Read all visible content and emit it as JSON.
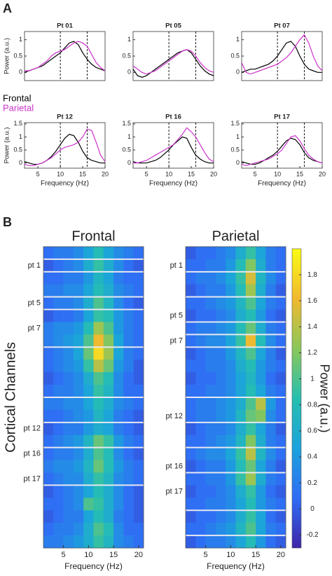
{
  "panel_labels": [
    "A",
    "B"
  ],
  "chart_data": [
    {
      "type": "line",
      "title": "Pt 01",
      "ylabel": "Power (a.u.)",
      "x": [
        2,
        3,
        4,
        5,
        6,
        7,
        8,
        9,
        10,
        11,
        12,
        13,
        14,
        15,
        16,
        17,
        18,
        19,
        20
      ],
      "xlim": [
        2,
        20
      ],
      "ylim": [
        -0.25,
        1.25
      ],
      "yticks": [
        0,
        0.5,
        1
      ],
      "vlines": [
        10,
        16
      ],
      "series": [
        {
          "name": "Frontal",
          "color": "#000000",
          "values": [
            0,
            0.05,
            0.1,
            0.15,
            0.2,
            0.3,
            0.4,
            0.5,
            0.6,
            0.75,
            0.9,
            0.95,
            0.85,
            0.6,
            0.4,
            0.25,
            0.15,
            0.1,
            0.05
          ]
        },
        {
          "name": "Parietal",
          "color": "#cc33cc",
          "values": [
            0.05,
            0.05,
            0.1,
            0.15,
            0.25,
            0.35,
            0.5,
            0.6,
            0.65,
            0.7,
            0.8,
            0.9,
            0.95,
            0.9,
            0.8,
            0.55,
            0.3,
            0.15,
            0.05
          ]
        }
      ]
    },
    {
      "type": "line",
      "title": "Pt 05",
      "x": [
        2,
        3,
        4,
        5,
        6,
        7,
        8,
        9,
        10,
        11,
        12,
        13,
        14,
        15,
        16,
        17,
        18,
        19,
        20
      ],
      "xlim": [
        2,
        20
      ],
      "ylim": [
        -0.25,
        1.25
      ],
      "yticks": [
        0,
        0.5,
        1
      ],
      "vlines": [
        10,
        16
      ],
      "series": [
        {
          "name": "Frontal",
          "color": "#000000",
          "values": [
            0.1,
            -0.1,
            -0.15,
            -0.1,
            0,
            0.1,
            0.2,
            0.3,
            0.4,
            0.5,
            0.6,
            0.65,
            0.7,
            0.6,
            0.4,
            0.2,
            0.05,
            -0.05,
            -0.1
          ]
        },
        {
          "name": "Parietal",
          "color": "#cc33cc",
          "values": [
            0.2,
            0.1,
            0,
            -0.05,
            0,
            0.05,
            0.15,
            0.25,
            0.35,
            0.45,
            0.55,
            0.65,
            0.7,
            0.65,
            0.5,
            0.3,
            0.15,
            0.05,
            0
          ]
        }
      ]
    },
    {
      "type": "line",
      "title": "Pt 07",
      "x": [
        2,
        3,
        4,
        5,
        6,
        7,
        8,
        9,
        10,
        11,
        12,
        13,
        14,
        15,
        16,
        17,
        18,
        19,
        20
      ],
      "xlim": [
        2,
        20
      ],
      "ylim": [
        -0.25,
        1.25
      ],
      "yticks": [
        0,
        0.5,
        1
      ],
      "vlines": [
        10,
        16
      ],
      "series": [
        {
          "name": "Frontal",
          "color": "#000000",
          "values": [
            0,
            0.05,
            0.1,
            0.1,
            0.15,
            0.2,
            0.25,
            0.35,
            0.5,
            0.7,
            0.9,
            0.95,
            0.8,
            0.5,
            0.25,
            0.1,
            0.05,
            0,
            0
          ]
        },
        {
          "name": "Parietal",
          "color": "#cc33cc",
          "values": [
            0.3,
            0,
            -0.05,
            0,
            0.05,
            0.1,
            0.15,
            0.2,
            0.25,
            0.35,
            0.45,
            0.6,
            0.8,
            1.0,
            1.15,
            0.9,
            0.5,
            0.2,
            0.05
          ]
        }
      ]
    },
    {
      "type": "line",
      "title": "Pt 12",
      "ylabel": "Power (a.u.)",
      "xlabel": "Frequency (Hz)",
      "x": [
        2,
        3,
        4,
        5,
        6,
        7,
        8,
        9,
        10,
        11,
        12,
        13,
        14,
        15,
        16,
        17,
        18,
        19,
        20
      ],
      "xlim": [
        2,
        20
      ],
      "ylim": [
        -0.2,
        1.55
      ],
      "yticks": [
        0,
        0.5,
        1,
        1.5
      ],
      "xticks": [
        5,
        10,
        15,
        20
      ],
      "vlines": [
        10,
        16
      ],
      "series": [
        {
          "name": "Frontal",
          "color": "#000000",
          "values": [
            0.05,
            0,
            -0.05,
            -0.05,
            0,
            0.1,
            0.25,
            0.45,
            0.7,
            0.95,
            1.1,
            1.05,
            0.8,
            0.45,
            0.2,
            0.1,
            0.05,
            0,
            0
          ]
        },
        {
          "name": "Parietal",
          "color": "#cc33cc",
          "values": [
            -0.05,
            -0.1,
            -0.1,
            -0.05,
            0,
            0.1,
            0.2,
            0.35,
            0.5,
            0.6,
            0.65,
            0.7,
            0.8,
            1.0,
            1.3,
            1.25,
            0.8,
            0.3,
            0.05
          ]
        }
      ]
    },
    {
      "type": "line",
      "title": "Pt 16",
      "xlabel": "Frequency (Hz)",
      "x": [
        2,
        3,
        4,
        5,
        6,
        7,
        8,
        9,
        10,
        11,
        12,
        13,
        14,
        15,
        16,
        17,
        18,
        19,
        20
      ],
      "xlim": [
        2,
        20
      ],
      "ylim": [
        -0.2,
        1.55
      ],
      "yticks": [
        0,
        0.5,
        1,
        1.5
      ],
      "xticks": [
        5,
        10,
        15,
        20
      ],
      "vlines": [
        10,
        16
      ],
      "series": [
        {
          "name": "Frontal",
          "color": "#000000",
          "values": [
            0.05,
            0,
            0,
            0,
            0.05,
            0.1,
            0.2,
            0.35,
            0.5,
            0.7,
            0.85,
            1.0,
            0.95,
            0.6,
            0.3,
            0.15,
            0.05,
            0,
            0
          ]
        },
        {
          "name": "Parietal",
          "color": "#cc33cc",
          "values": [
            0,
            0,
            0.05,
            0.1,
            0.2,
            0.3,
            0.4,
            0.5,
            0.6,
            0.7,
            0.9,
            1.1,
            1.35,
            1.2,
            1.0,
            0.7,
            0.4,
            0.15,
            0.05
          ]
        }
      ]
    },
    {
      "type": "line",
      "title": "Pt 17",
      "xlabel": "Frequency (Hz)",
      "x": [
        2,
        3,
        4,
        5,
        6,
        7,
        8,
        9,
        10,
        11,
        12,
        13,
        14,
        15,
        16,
        17,
        18,
        19,
        20
      ],
      "xlim": [
        2,
        20
      ],
      "ylim": [
        -0.2,
        1.55
      ],
      "yticks": [
        0,
        0.5,
        1,
        1.5
      ],
      "xticks": [
        5,
        10,
        15,
        20
      ],
      "vlines": [
        10,
        16
      ],
      "series": [
        {
          "name": "Frontal",
          "color": "#000000",
          "values": [
            0.05,
            0,
            -0.05,
            -0.05,
            0,
            0.1,
            0.2,
            0.3,
            0.45,
            0.65,
            0.85,
            0.95,
            0.9,
            0.7,
            0.4,
            0.2,
            0.1,
            0.05,
            0
          ]
        },
        {
          "name": "Parietal",
          "color": "#cc33cc",
          "values": [
            -0.05,
            -0.1,
            -0.05,
            0,
            0.05,
            0.1,
            0.15,
            0.25,
            0.35,
            0.5,
            0.75,
            1.0,
            1.05,
            0.85,
            0.55,
            0.3,
            0.15,
            0.05,
            0
          ]
        }
      ]
    },
    {
      "type": "heatmap",
      "title": "Frontal",
      "ylabel": "Cortical Channels",
      "xlabel": "Frequency (Hz)",
      "x": [
        2,
        4,
        6,
        8,
        10,
        12,
        14,
        16,
        18,
        20
      ],
      "xlim": [
        1,
        21
      ],
      "xticks": [
        5,
        10,
        15,
        20
      ],
      "clim": [
        -0.3,
        2.0
      ],
      "colormap": [
        "#3e26a8",
        "#2f6df5",
        "#1ba2dc",
        "#26bfb0",
        "#8ac75a",
        "#f1b92f",
        "#f9fb15"
      ],
      "rows": [
        null,
        "pt 1",
        null,
        null,
        "pt 5",
        null,
        "pt 7",
        null,
        null,
        null,
        null,
        null,
        null,
        null,
        "pt 12",
        null,
        "pt 16",
        null,
        "pt 17",
        null,
        null,
        null,
        null,
        null
      ],
      "separators": [
        1,
        2,
        4,
        5,
        8,
        12,
        14,
        16,
        19
      ],
      "z": [
        [
          0.1,
          0.2,
          0.2,
          0.3,
          0.5,
          0.8,
          0.5,
          0.3,
          0.2,
          0.1
        ],
        [
          0.0,
          0.1,
          0.2,
          0.3,
          0.6,
          0.9,
          0.6,
          0.3,
          0.1,
          0.0
        ],
        [
          0.1,
          0.1,
          0.2,
          0.2,
          0.4,
          0.7,
          0.5,
          0.2,
          0.1,
          0.1
        ],
        [
          0.2,
          0.2,
          0.3,
          0.3,
          0.5,
          0.8,
          0.6,
          0.3,
          0.2,
          0.1
        ],
        [
          0.1,
          0.2,
          0.2,
          0.3,
          0.6,
          1.0,
          0.7,
          0.3,
          0.1,
          0.0
        ],
        [
          0.0,
          0.1,
          0.1,
          0.2,
          0.5,
          0.9,
          0.8,
          0.4,
          0.2,
          0.1
        ],
        [
          0.2,
          0.3,
          0.3,
          0.4,
          0.8,
          1.3,
          1.0,
          0.4,
          0.2,
          0.1
        ],
        [
          0.2,
          0.3,
          0.4,
          0.5,
          1.0,
          1.6,
          1.2,
          0.5,
          0.2,
          0.1
        ],
        [
          0.1,
          0.2,
          0.3,
          0.5,
          1.1,
          1.8,
          1.3,
          0.5,
          0.2,
          0.1
        ],
        [
          0.1,
          0.2,
          0.3,
          0.4,
          0.9,
          1.4,
          1.1,
          0.4,
          0.2,
          0.0
        ],
        [
          0.0,
          0.1,
          0.2,
          0.3,
          0.6,
          1.0,
          0.8,
          0.3,
          0.1,
          0.0
        ],
        [
          0.1,
          0.2,
          0.2,
          0.3,
          0.5,
          0.9,
          0.7,
          0.3,
          0.1,
          0.1
        ],
        [
          0.2,
          0.2,
          0.3,
          0.3,
          0.5,
          0.8,
          0.6,
          0.3,
          0.2,
          0.1
        ],
        [
          0.1,
          0.1,
          0.2,
          0.3,
          0.4,
          0.7,
          0.5,
          0.2,
          0.1,
          0.0
        ],
        [
          0.0,
          0.1,
          0.2,
          0.2,
          0.4,
          0.6,
          0.5,
          0.2,
          0.1,
          0.0
        ],
        [
          0.1,
          0.2,
          0.3,
          0.4,
          0.7,
          1.1,
          0.9,
          0.4,
          0.2,
          0.1
        ],
        [
          0.1,
          0.2,
          0.2,
          0.3,
          0.6,
          1.0,
          0.8,
          0.3,
          0.1,
          0.0
        ],
        [
          0.2,
          0.3,
          0.3,
          0.4,
          0.7,
          1.1,
          0.8,
          0.4,
          0.2,
          0.1
        ],
        [
          0.1,
          0.2,
          0.3,
          0.3,
          0.6,
          0.9,
          0.7,
          0.3,
          0.2,
          0.1
        ],
        [
          0.0,
          0.1,
          0.2,
          0.3,
          0.5,
          0.8,
          0.6,
          0.3,
          0.1,
          0.0
        ],
        [
          0.1,
          0.1,
          0.2,
          0.3,
          1.0,
          0.9,
          0.6,
          0.3,
          0.1,
          0.0
        ],
        [
          0.0,
          0.1,
          0.2,
          0.2,
          0.5,
          0.8,
          0.6,
          0.2,
          0.1,
          0.0
        ],
        [
          0.1,
          0.2,
          0.2,
          0.3,
          0.6,
          1.0,
          0.8,
          0.3,
          0.1,
          0.1
        ],
        [
          0.2,
          0.2,
          0.3,
          0.4,
          0.6,
          0.9,
          0.7,
          0.3,
          0.2,
          0.1
        ]
      ]
    },
    {
      "type": "heatmap",
      "title": "Parietal",
      "xlabel": "Frequency (Hz)",
      "x": [
        2,
        4,
        6,
        8,
        10,
        12,
        14,
        16,
        18,
        20
      ],
      "xlim": [
        1,
        21
      ],
      "xticks": [
        5,
        10,
        15,
        20
      ],
      "clim": [
        -0.3,
        2.0
      ],
      "colormap": [
        "#3e26a8",
        "#2f6df5",
        "#1ba2dc",
        "#26bfb0",
        "#8ac75a",
        "#f1b92f",
        "#f9fb15"
      ],
      "colorbar": {
        "label": "Power (a.u.)",
        "ticks": [
          -0.2,
          0,
          0.2,
          0.4,
          0.6,
          0.8,
          1,
          1.2,
          1.4,
          1.6,
          1.8
        ]
      },
      "rows": [
        null,
        "pt 1",
        null,
        null,
        null,
        "pt 5",
        null,
        "pt 7",
        null,
        null,
        null,
        null,
        null,
        "pt 12",
        null,
        null,
        null,
        "pt 16",
        null,
        "pt 17",
        null,
        null,
        null,
        null
      ],
      "separators": [
        2,
        4,
        6,
        7,
        8,
        12,
        14,
        16,
        18,
        21,
        23
      ],
      "z": [
        [
          0.0,
          0.1,
          0.1,
          0.2,
          0.3,
          0.6,
          0.9,
          0.5,
          0.2,
          0.1
        ],
        [
          0.1,
          0.1,
          0.2,
          0.2,
          0.4,
          0.8,
          1.2,
          0.6,
          0.2,
          0.1
        ],
        [
          0.1,
          0.2,
          0.2,
          0.3,
          0.5,
          0.9,
          1.5,
          0.7,
          0.3,
          0.1
        ],
        [
          0.0,
          0.1,
          0.2,
          0.2,
          0.4,
          0.8,
          1.3,
          0.6,
          0.2,
          0.0
        ],
        [
          0.1,
          0.1,
          0.2,
          0.3,
          0.4,
          0.7,
          1.0,
          0.5,
          0.2,
          0.1
        ],
        [
          0.0,
          0.1,
          0.1,
          0.2,
          0.3,
          0.6,
          0.8,
          0.4,
          0.1,
          0.0
        ],
        [
          0.1,
          0.2,
          0.2,
          0.3,
          0.4,
          0.8,
          1.1,
          0.6,
          0.2,
          0.1
        ],
        [
          0.1,
          0.2,
          0.3,
          0.3,
          0.5,
          0.9,
          1.6,
          0.8,
          0.3,
          0.1
        ],
        [
          0.0,
          0.1,
          0.2,
          0.2,
          0.4,
          0.7,
          1.0,
          0.5,
          0.2,
          0.0
        ],
        [
          0.1,
          0.1,
          0.2,
          0.2,
          0.3,
          0.6,
          0.8,
          0.4,
          0.2,
          0.1
        ],
        [
          0.0,
          0.1,
          0.1,
          0.2,
          0.3,
          0.5,
          0.7,
          0.4,
          0.1,
          0.0
        ],
        [
          0.1,
          0.1,
          0.2,
          0.2,
          0.3,
          0.5,
          0.8,
          0.5,
          0.2,
          0.1
        ],
        [
          0.1,
          0.2,
          0.2,
          0.3,
          0.4,
          0.6,
          1.0,
          1.4,
          0.4,
          0.1
        ],
        [
          0.1,
          0.2,
          0.2,
          0.3,
          0.4,
          0.7,
          1.1,
          1.2,
          0.3,
          0.1
        ],
        [
          0.0,
          0.1,
          0.2,
          0.2,
          0.3,
          0.6,
          0.9,
          0.5,
          0.2,
          0.0
        ],
        [
          0.1,
          0.1,
          0.2,
          0.3,
          0.4,
          0.7,
          1.2,
          0.6,
          0.2,
          0.1
        ],
        [
          0.1,
          0.2,
          0.3,
          0.3,
          0.5,
          0.9,
          1.4,
          0.7,
          0.3,
          0.1
        ],
        [
          0.0,
          0.1,
          0.2,
          0.2,
          0.4,
          0.8,
          1.1,
          0.5,
          0.2,
          0.0
        ],
        [
          0.1,
          0.1,
          0.2,
          0.2,
          0.4,
          0.9,
          1.3,
          0.6,
          0.2,
          0.1
        ],
        [
          0.0,
          0.1,
          0.1,
          0.2,
          0.3,
          0.6,
          0.9,
          0.4,
          0.1,
          0.0
        ],
        [
          0.1,
          0.1,
          0.2,
          0.2,
          0.3,
          0.5,
          0.8,
          0.4,
          0.2,
          0.1
        ],
        [
          0.0,
          0.1,
          0.1,
          0.2,
          0.3,
          0.6,
          0.9,
          0.5,
          0.1,
          0.0
        ],
        [
          0.1,
          0.1,
          0.2,
          0.3,
          0.4,
          0.7,
          1.0,
          0.5,
          0.2,
          0.1
        ],
        [
          0.0,
          0.1,
          0.2,
          0.2,
          0.3,
          0.5,
          0.8,
          0.4,
          0.1,
          0.0
        ]
      ]
    }
  ]
}
